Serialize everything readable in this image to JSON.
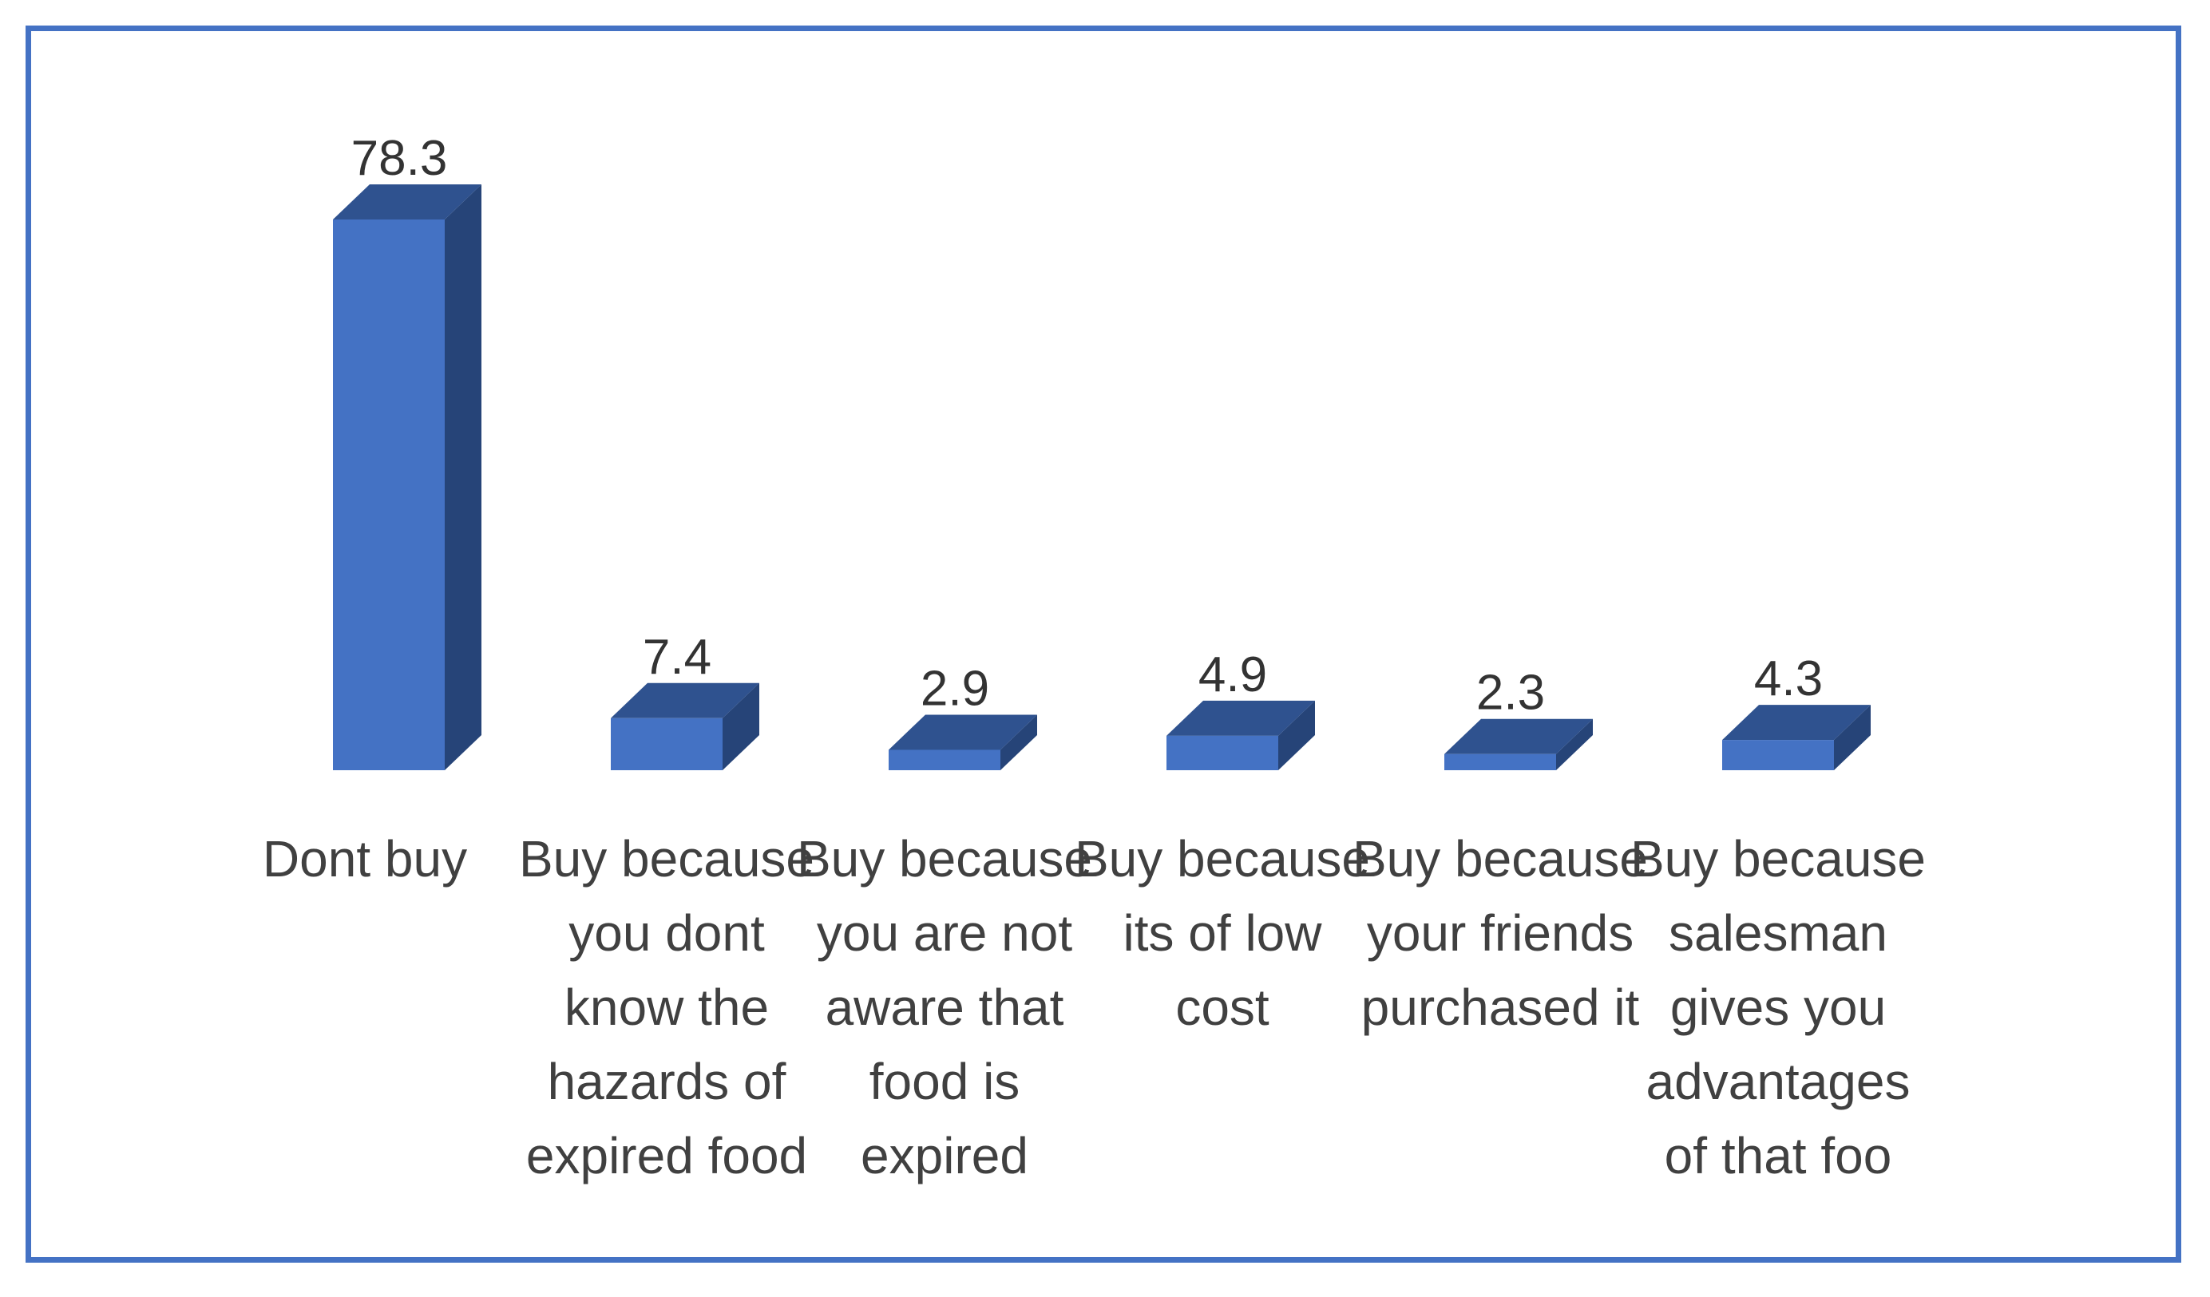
{
  "chart_data": {
    "type": "bar",
    "style": "3d-column",
    "title": "",
    "xlabel": "",
    "ylabel": "",
    "ylim": [
      0,
      80
    ],
    "grid": false,
    "legend": "none",
    "categories": [
      "Dont buy",
      "Buy because you dont know the hazards of expired food",
      "Buy because you are not aware that food is expired",
      "Buy because its of low cost",
      "Buy because your friends purchased it",
      "Buy because salesman gives you advantages of that foo"
    ],
    "category_lines": [
      [
        "Dont buy"
      ],
      [
        "Buy because",
        "you dont",
        "know the",
        "hazards of",
        "expired food"
      ],
      [
        "Buy because",
        "you are not",
        "aware that",
        "food is",
        "expired"
      ],
      [
        "Buy because",
        "its of low",
        "cost"
      ],
      [
        "Buy because",
        "your friends",
        "purchased it"
      ],
      [
        "Buy because",
        "salesman",
        "gives you",
        "advantages",
        "of that foo"
      ]
    ],
    "values": [
      78.3,
      7.4,
      2.9,
      4.9,
      2.3,
      4.3
    ],
    "value_labels": [
      "78.3",
      "7.4",
      "2.9",
      "4.9",
      "2.3",
      "4.3"
    ]
  },
  "colors": {
    "frame": "#4472c4",
    "bar_front": "#4472c4",
    "bar_top": "#2f528f",
    "bar_side": "#264478",
    "label_text": "#404040",
    "value_text": "#333333"
  }
}
